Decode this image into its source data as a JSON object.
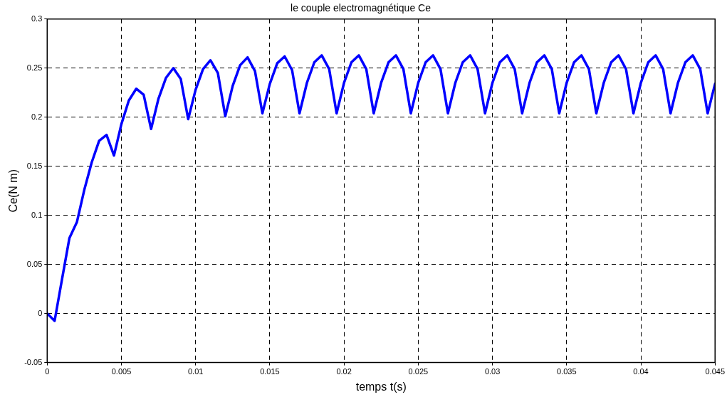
{
  "chart_data": {
    "type": "line",
    "title": "le couple electromagnétique Ce",
    "xlabel": "temps t(s)",
    "ylabel": "Ce(N m)",
    "x": [
      0,
      0.0005,
      0.001,
      0.0015,
      0.002,
      0.0025,
      0.003,
      0.0035,
      0.004,
      0.0045,
      0.005,
      0.0055,
      0.006,
      0.0065,
      0.007,
      0.0075,
      0.008,
      0.0085,
      0.009,
      0.0095,
      0.01,
      0.0105,
      0.011,
      0.0115,
      0.012,
      0.0125,
      0.013,
      0.0135,
      0.014,
      0.0145,
      0.015,
      0.0155,
      0.016,
      0.0165,
      0.017,
      0.0175,
      0.018,
      0.0185,
      0.019,
      0.0195,
      0.02,
      0.0205,
      0.021,
      0.0215,
      0.022,
      0.0225,
      0.023,
      0.0235,
      0.024,
      0.0245,
      0.025,
      0.0255,
      0.026,
      0.0265,
      0.027,
      0.0275,
      0.028,
      0.0285,
      0.029,
      0.0295,
      0.03,
      0.0305,
      0.031,
      0.0315,
      0.032,
      0.0325,
      0.033,
      0.0335,
      0.034,
      0.0345,
      0.035,
      0.0355,
      0.036,
      0.0365,
      0.037,
      0.0375,
      0.038,
      0.0385,
      0.039,
      0.0395,
      0.04,
      0.0405,
      0.041,
      0.0415,
      0.042,
      0.0425,
      0.043,
      0.0435,
      0.044,
      0.0445,
      0.045
    ],
    "series": [
      {
        "color": "#0000ff",
        "values": [
          0,
          -0.0075,
          0.035,
          0.077,
          0.093,
          0.126,
          0.154,
          0.176,
          0.182,
          0.161,
          0.193,
          0.217,
          0.229,
          0.223,
          0.188,
          0.219,
          0.24,
          0.25,
          0.239,
          0.198,
          0.228,
          0.249,
          0.258,
          0.245,
          0.201,
          0.232,
          0.253,
          0.261,
          0.247,
          0.204,
          0.234,
          0.255,
          0.262,
          0.248,
          0.204,
          0.235,
          0.256,
          0.263,
          0.249,
          0.204,
          0.235,
          0.256,
          0.263,
          0.249,
          0.204,
          0.235,
          0.256,
          0.263,
          0.249,
          0.204,
          0.235,
          0.256,
          0.263,
          0.249,
          0.204,
          0.235,
          0.256,
          0.263,
          0.249,
          0.204,
          0.235,
          0.256,
          0.263,
          0.249,
          0.204,
          0.235,
          0.256,
          0.263,
          0.249,
          0.204,
          0.235,
          0.256,
          0.263,
          0.249,
          0.204,
          0.235,
          0.256,
          0.263,
          0.249,
          0.204,
          0.235,
          0.256,
          0.263,
          0.249,
          0.204,
          0.235,
          0.256,
          0.263,
          0.249,
          0.204,
          0.234
        ]
      }
    ],
    "xlim": [
      0,
      0.045
    ],
    "xticks": [
      0,
      0.005,
      0.01,
      0.015,
      0.02,
      0.025,
      0.03,
      0.035,
      0.04,
      0.045
    ],
    "ylim": [
      -0.05,
      0.3
    ],
    "yticks": [
      -0.05,
      0,
      0.05,
      0.1,
      0.15,
      0.2,
      0.25,
      0.3
    ],
    "grid": true,
    "line_style": "solid",
    "marker": "none"
  }
}
